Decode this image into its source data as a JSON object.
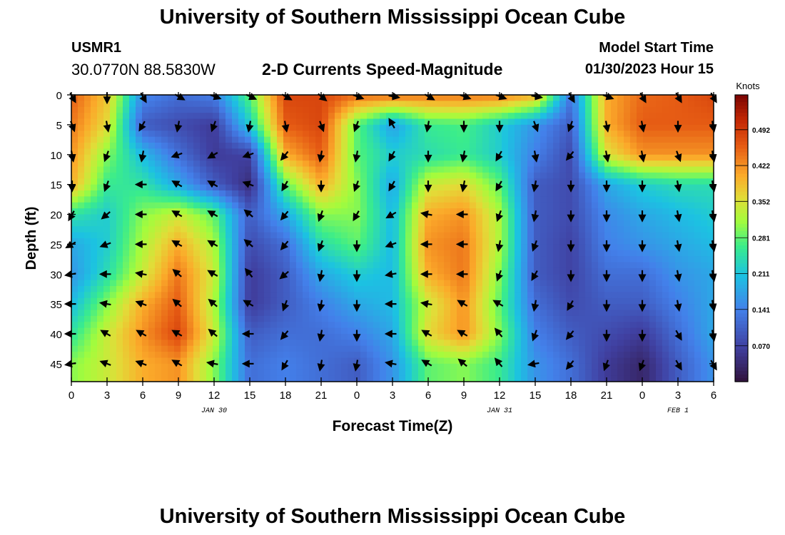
{
  "header": {
    "title": "University of Southern Mississippi Ocean Cube",
    "station": "USMR1",
    "coordinates": "30.0770N  88.5830W",
    "subtitle": "2-D Currents Speed-Magnitude",
    "model_start_label": "Model Start Time",
    "model_start_value": "01/30/2023 Hour 15"
  },
  "footer": {
    "title": "University of Southern Mississippi Ocean Cube"
  },
  "chart_data": {
    "type": "heatmap",
    "title": "2-D Currents Speed-Magnitude",
    "xlabel": "Forecast Time(Z)",
    "ylabel": "Depth (ft)",
    "x_ticks": [
      "0",
      "3",
      "6",
      "9",
      "12",
      "15",
      "18",
      "21",
      "0",
      "3",
      "6",
      "9",
      "12",
      "15",
      "18",
      "21",
      "0",
      "3",
      "6"
    ],
    "date_labels": [
      {
        "text": "JAN 30",
        "tick_index": 4
      },
      {
        "text": "JAN 31",
        "tick_index": 12
      },
      {
        "text": "FEB 1",
        "tick_index": 17
      }
    ],
    "y_ticks": [
      0,
      5,
      10,
      15,
      20,
      25,
      30,
      35,
      40,
      45
    ],
    "ylim": [
      0,
      48
    ],
    "colorbar": {
      "label": "Knots",
      "ticks": [
        "0.492",
        "0.422",
        "0.352",
        "0.281",
        "0.211",
        "0.141",
        "0.070"
      ],
      "range": [
        0,
        0.56
      ]
    },
    "speed_grid": {
      "depths_ft": [
        0,
        5,
        10,
        15,
        20,
        25,
        30,
        35,
        40,
        45
      ],
      "hours": [
        0,
        3,
        6,
        9,
        12,
        15,
        18,
        21,
        24,
        27,
        30,
        33,
        36,
        39,
        42,
        45,
        48,
        51,
        54
      ],
      "values": [
        [
          0.46,
          0.38,
          0.15,
          0.12,
          0.14,
          0.28,
          0.48,
          0.48,
          0.45,
          0.45,
          0.44,
          0.44,
          0.44,
          0.4,
          0.13,
          0.4,
          0.45,
          0.46,
          0.48
        ],
        [
          0.44,
          0.36,
          0.1,
          0.08,
          0.06,
          0.22,
          0.46,
          0.48,
          0.28,
          0.17,
          0.26,
          0.27,
          0.22,
          0.16,
          0.1,
          0.4,
          0.46,
          0.46,
          0.46
        ],
        [
          0.42,
          0.3,
          0.2,
          0.12,
          0.06,
          0.07,
          0.4,
          0.46,
          0.28,
          0.22,
          0.24,
          0.26,
          0.22,
          0.14,
          0.08,
          0.35,
          0.42,
          0.42,
          0.42
        ],
        [
          0.4,
          0.26,
          0.25,
          0.18,
          0.1,
          0.04,
          0.28,
          0.4,
          0.3,
          0.18,
          0.34,
          0.36,
          0.28,
          0.1,
          0.08,
          0.18,
          0.22,
          0.24,
          0.24
        ],
        [
          0.25,
          0.22,
          0.3,
          0.34,
          0.28,
          0.1,
          0.18,
          0.3,
          0.3,
          0.2,
          0.4,
          0.42,
          0.32,
          0.1,
          0.08,
          0.15,
          0.18,
          0.2,
          0.22
        ],
        [
          0.18,
          0.22,
          0.32,
          0.4,
          0.32,
          0.08,
          0.12,
          0.24,
          0.28,
          0.2,
          0.42,
          0.44,
          0.32,
          0.1,
          0.07,
          0.14,
          0.16,
          0.18,
          0.2
        ],
        [
          0.16,
          0.24,
          0.34,
          0.44,
          0.34,
          0.06,
          0.1,
          0.18,
          0.22,
          0.2,
          0.4,
          0.44,
          0.3,
          0.1,
          0.07,
          0.12,
          0.12,
          0.16,
          0.18
        ],
        [
          0.2,
          0.3,
          0.4,
          0.46,
          0.32,
          0.06,
          0.1,
          0.14,
          0.18,
          0.2,
          0.34,
          0.42,
          0.28,
          0.12,
          0.08,
          0.1,
          0.1,
          0.14,
          0.18
        ],
        [
          0.25,
          0.34,
          0.42,
          0.48,
          0.34,
          0.1,
          0.12,
          0.12,
          0.14,
          0.18,
          0.36,
          0.42,
          0.3,
          0.14,
          0.1,
          0.08,
          0.06,
          0.12,
          0.18
        ],
        [
          0.3,
          0.34,
          0.4,
          0.42,
          0.3,
          0.12,
          0.14,
          0.12,
          0.1,
          0.16,
          0.28,
          0.3,
          0.26,
          0.16,
          0.12,
          0.06,
          0.03,
          0.1,
          0.16
        ]
      ]
    },
    "arrow_directions_deg": [
      [
        150,
        180,
        150,
        120,
        110,
        115,
        120,
        130,
        110,
        100,
        120,
        110,
        110,
        100,
        150,
        110,
        150,
        150,
        150
      ],
      [
        160,
        170,
        210,
        190,
        200,
        190,
        170,
        160,
        200,
        330,
        190,
        180,
        180,
        160,
        200,
        170,
        170,
        180,
        170
      ],
      [
        170,
        200,
        190,
        250,
        240,
        250,
        220,
        190,
        190,
        210,
        180,
        190,
        210,
        170,
        220,
        170,
        170,
        160,
        170
      ],
      [
        180,
        200,
        270,
        300,
        300,
        290,
        210,
        180,
        200,
        210,
        180,
        190,
        210,
        190,
        180,
        180,
        180,
        170,
        170
      ],
      [
        210,
        230,
        270,
        300,
        300,
        310,
        220,
        200,
        210,
        240,
        280,
        270,
        200,
        190,
        180,
        180,
        180,
        170,
        170
      ],
      [
        240,
        250,
        270,
        300,
        300,
        310,
        220,
        200,
        180,
        250,
        270,
        270,
        190,
        200,
        180,
        180,
        180,
        170,
        170
      ],
      [
        260,
        270,
        280,
        310,
        300,
        320,
        230,
        190,
        180,
        260,
        270,
        270,
        200,
        210,
        180,
        180,
        180,
        170,
        170
      ],
      [
        270,
        280,
        290,
        310,
        310,
        300,
        200,
        190,
        180,
        270,
        280,
        300,
        300,
        190,
        210,
        180,
        180,
        170,
        170
      ],
      [
        270,
        300,
        300,
        300,
        310,
        270,
        220,
        190,
        180,
        270,
        300,
        300,
        320,
        200,
        220,
        180,
        180,
        150,
        170
      ],
      [
        260,
        290,
        290,
        300,
        280,
        270,
        210,
        190,
        190,
        280,
        300,
        310,
        320,
        260,
        220,
        200,
        200,
        150,
        150
      ]
    ]
  }
}
